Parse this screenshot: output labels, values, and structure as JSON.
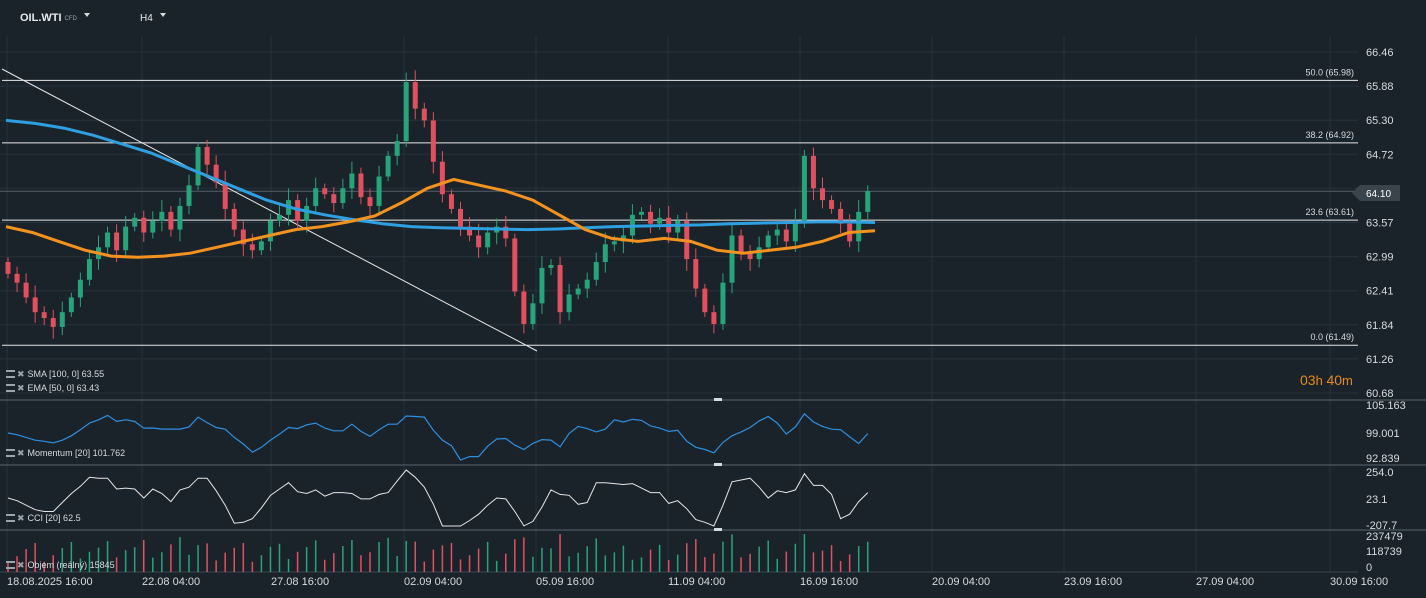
{
  "header": {
    "symbol": "OIL.WTI",
    "symbol_tag": "CFD",
    "timeframe": "H4"
  },
  "colors": {
    "background": "#1b232a",
    "grid": "#26313a",
    "up": "#26a47a",
    "down": "#e0505e",
    "sma": "#2e9fe0",
    "ema": "#f3921e",
    "fib": "#e8e8e8",
    "momentum": "#2e8fe0",
    "cci": "#e6e6e6",
    "timer": "#e58a1f"
  },
  "price_axis": {
    "ticks": [
      "66.46",
      "65.88",
      "65.30",
      "64.72",
      "64.10",
      "63.57",
      "62.99",
      "62.41",
      "61.84",
      "61.26",
      "60.68"
    ],
    "current_price": "64.10"
  },
  "fibonacci": [
    {
      "label": "50.0 (65.98)",
      "price": 65.98
    },
    {
      "label": "38.2 (64.92)",
      "price": 64.92
    },
    {
      "label": "23.6 (63.61)",
      "price": 63.61
    },
    {
      "label": "0.0 (61.49)",
      "price": 61.49
    }
  ],
  "indicators": {
    "sma": "SMA [100,  0]  63.55",
    "ema": "EMA [50,  0]  63.43",
    "momentum": "Momentum  [20]  101.762",
    "cci": "CCI  [20]  62.5",
    "volume": "Objem (reálný)  15845"
  },
  "timer": {
    "hours": "03",
    "h_unit": "h",
    "minutes": "40",
    "m_unit": "m"
  },
  "momentum_axis": [
    "105.163",
    "99.001",
    "92.839"
  ],
  "cci_axis": [
    "254.0",
    "23.1",
    "-207.7"
  ],
  "volume_axis": [
    "237479",
    "118739",
    "0"
  ],
  "time_axis": [
    "18.08.2025  16:00",
    "22.08  04:00",
    "27.08  16:00",
    "02.09  04:00",
    "05.09  16:00",
    "11.09  04:00",
    "16.09  16:00",
    "20.09  04:00",
    "23.09  16:00",
    "27.09  04:00",
    "30.09  16:00"
  ],
  "chart_data": {
    "type": "candlestick",
    "instrument": "OIL.WTI",
    "interval": "H4",
    "ylim": [
      60.68,
      66.46
    ],
    "closes": [
      62.7,
      62.55,
      62.3,
      62.05,
      61.95,
      61.8,
      62.05,
      62.3,
      62.6,
      62.95,
      63.15,
      63.4,
      63.1,
      63.5,
      63.65,
      63.4,
      63.6,
      63.75,
      63.45,
      63.85,
      64.2,
      64.85,
      64.55,
      64.25,
      63.8,
      63.45,
      63.2,
      63.1,
      63.25,
      63.6,
      63.7,
      63.95,
      63.6,
      63.85,
      64.15,
      64.05,
      63.9,
      64.15,
      64.4,
      64.0,
      63.85,
      64.35,
      64.7,
      64.95,
      65.95,
      65.5,
      65.3,
      64.6,
      64.05,
      63.8,
      63.5,
      63.35,
      63.15,
      63.4,
      63.5,
      63.3,
      62.4,
      61.85,
      62.2,
      62.8,
      62.85,
      62.05,
      62.35,
      62.45,
      62.6,
      62.9,
      63.2,
      63.25,
      63.35,
      63.7,
      63.75,
      63.55,
      63.65,
      63.4,
      63.6,
      62.95,
      62.45,
      62.05,
      61.85,
      62.55,
      63.35,
      63.05,
      62.95,
      63.15,
      63.35,
      63.45,
      63.25,
      63.6,
      64.7,
      64.15,
      63.95,
      63.8,
      63.55,
      63.25,
      63.75,
      64.1
    ],
    "sma_100": [
      65.3,
      65.25,
      65.17,
      65.05,
      64.9,
      64.75,
      64.55,
      64.35,
      64.15,
      63.95,
      63.8,
      63.7,
      63.62,
      63.55,
      63.5,
      63.48,
      63.47,
      63.46,
      63.45,
      63.46,
      63.48,
      63.5,
      63.51,
      63.52,
      63.53,
      63.55,
      63.56,
      63.57,
      63.58,
      63.58,
      63.57
    ],
    "ema_50": [
      63.5,
      63.4,
      63.25,
      63.1,
      63.0,
      62.98,
      63.0,
      63.05,
      63.15,
      63.25,
      63.35,
      63.45,
      63.5,
      63.58,
      63.68,
      63.9,
      64.15,
      64.3,
      64.2,
      64.1,
      63.95,
      63.7,
      63.45,
      63.3,
      63.25,
      63.3,
      63.25,
      63.1,
      63.05,
      63.1,
      63.15,
      63.25,
      63.4,
      63.43
    ],
    "fib_levels": [
      61.49,
      63.61,
      64.92,
      65.98
    ],
    "momentum_20": 101.762,
    "cci_20": 62.5,
    "volume_last": 15845,
    "current_price": 64.1
  }
}
